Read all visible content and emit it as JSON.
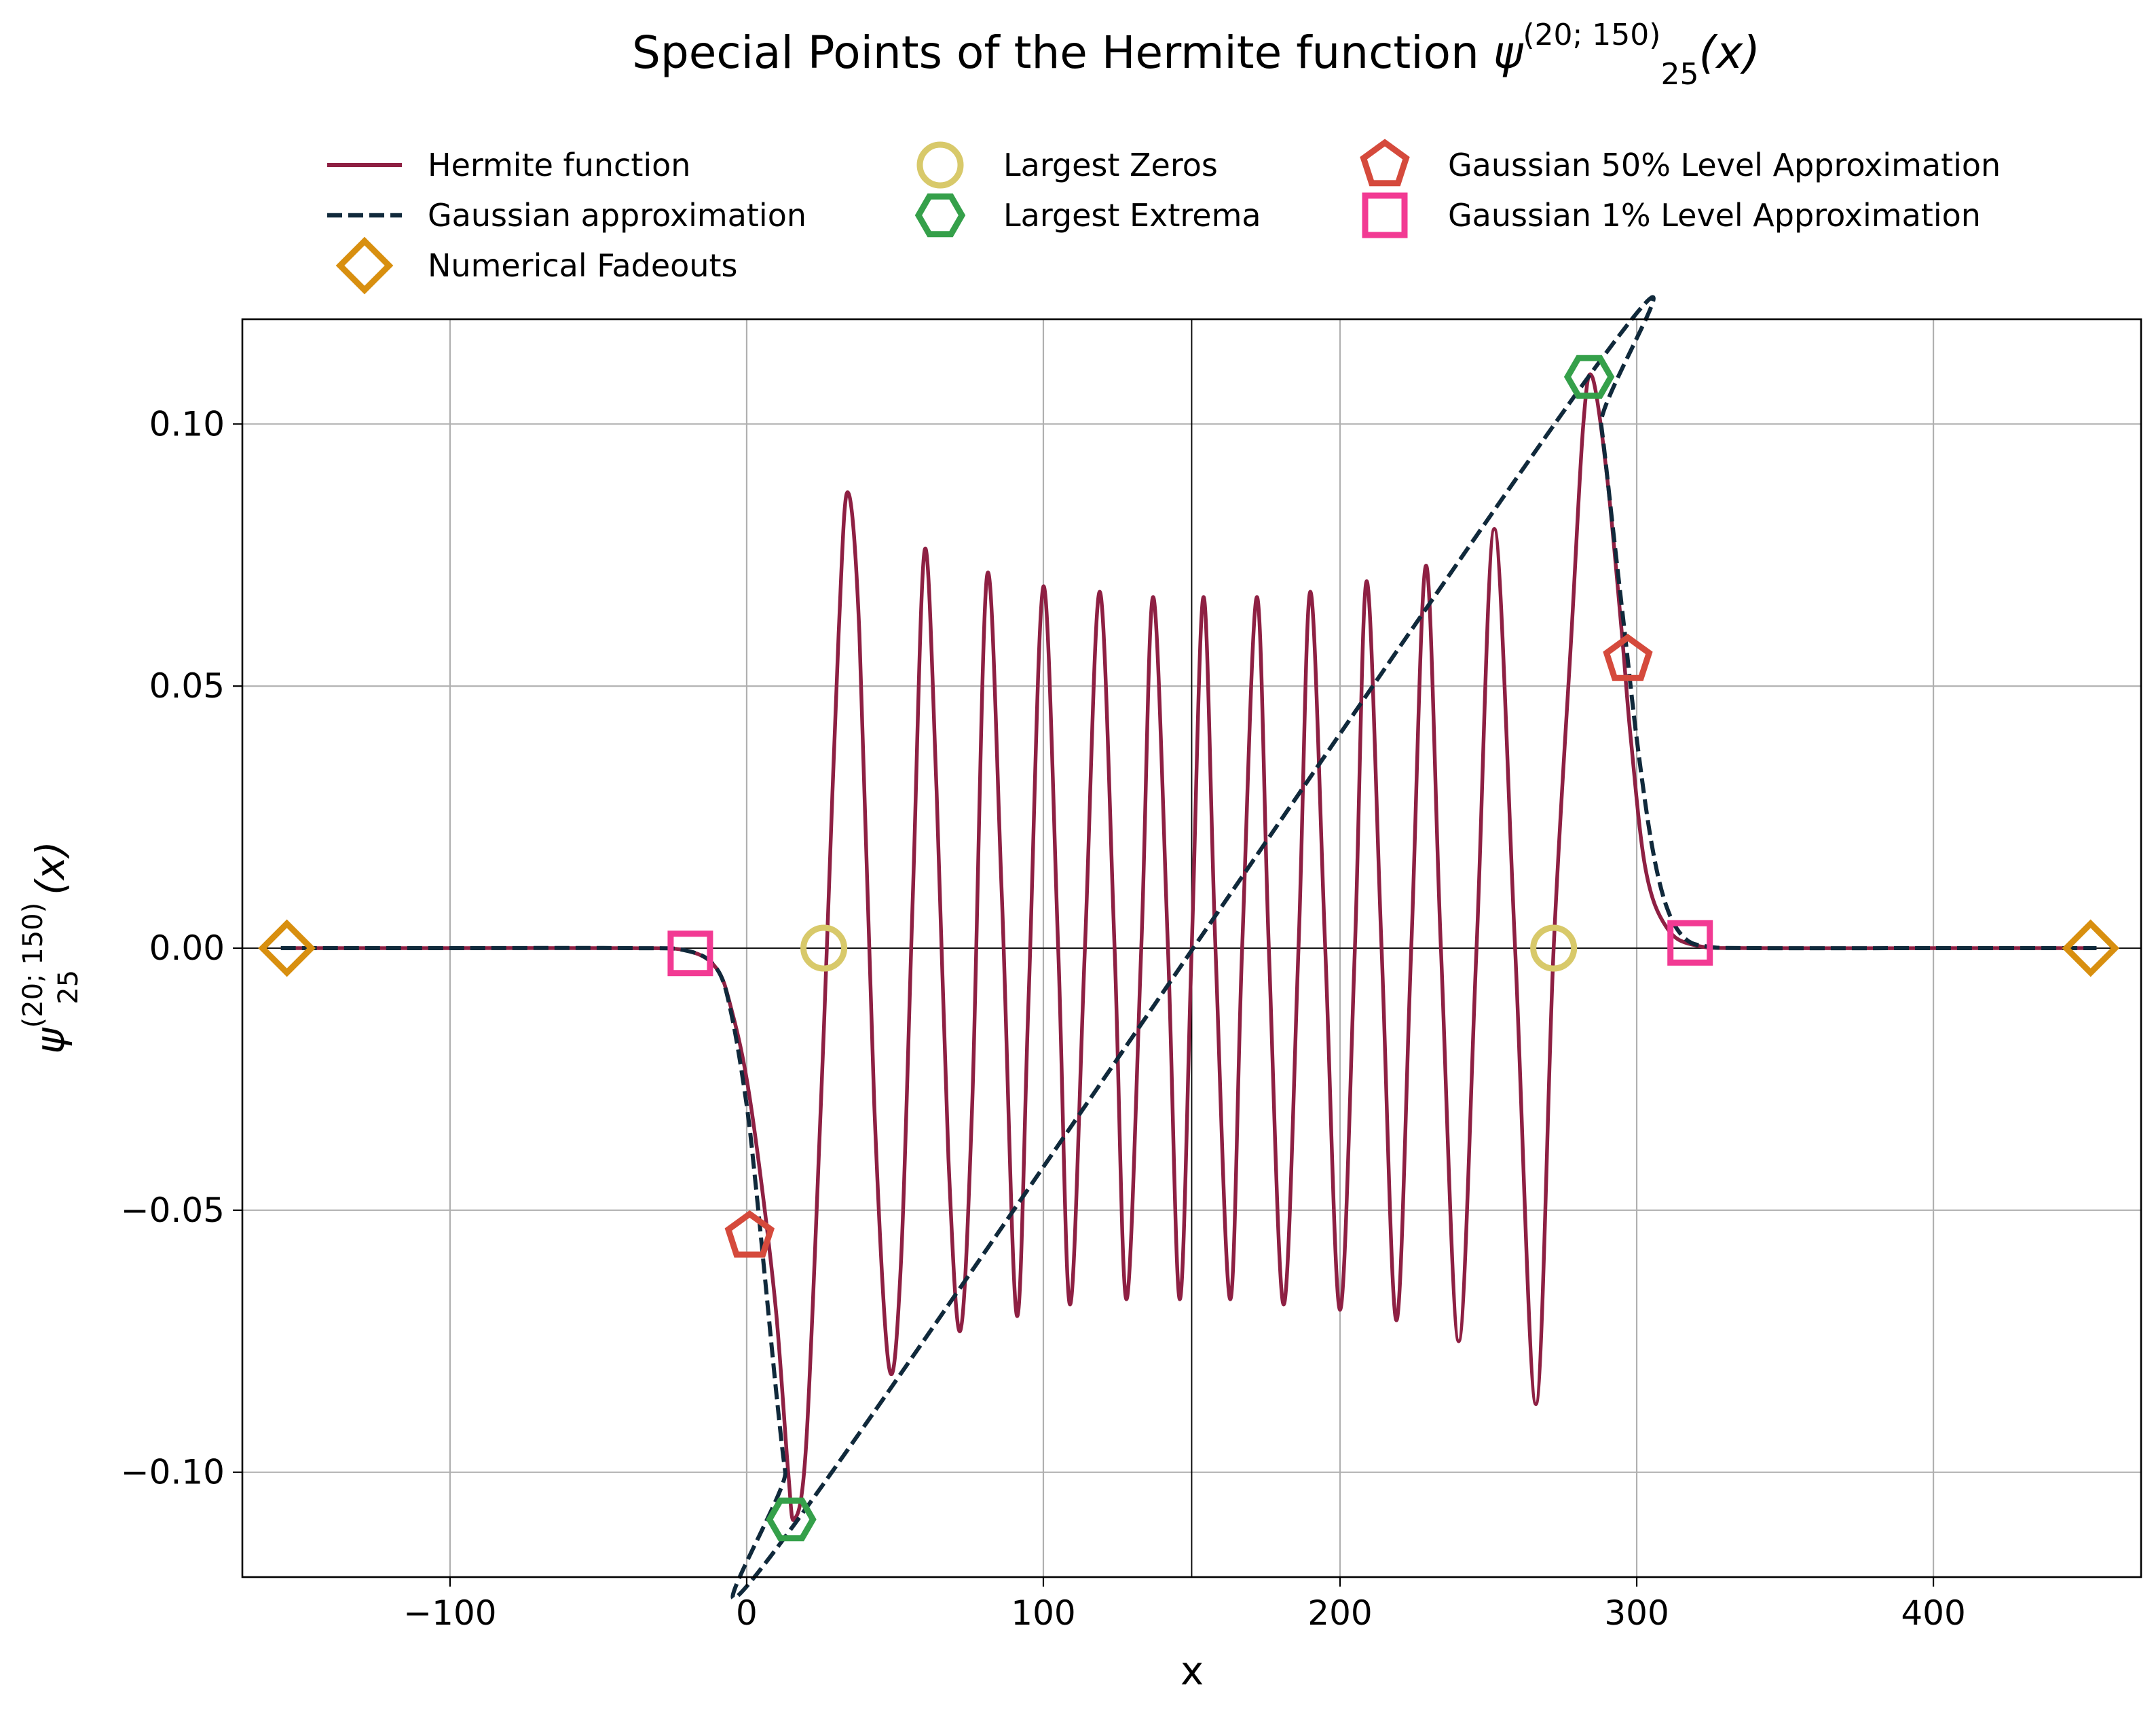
{
  "chart_data": {
    "type": "line",
    "title": {
      "prefix": "Special Points of the Hermite function ",
      "symbol": "ψ",
      "subscript": "25",
      "superscript": "(20; 150)",
      "suffix": "(x)"
    },
    "xlabel": "x",
    "ylabel": {
      "symbol": "ψ",
      "subscript": "25",
      "superscript": "(20; 150)",
      "suffix": "(x)"
    },
    "xlim": [
      -170,
      470
    ],
    "ylim": [
      -0.12,
      0.12
    ],
    "xticks": [
      -100,
      0,
      100,
      200,
      300,
      400
    ],
    "xtick_labels": [
      "−100",
      "0",
      "100",
      "200",
      "300",
      "400"
    ],
    "yticks": [
      -0.1,
      -0.05,
      0.0,
      0.05,
      0.1
    ],
    "ytick_labels": [
      "−0.10",
      "−0.05",
      "0.00",
      "0.05",
      "0.10"
    ],
    "grid": true,
    "reference_lines": {
      "x": 150,
      "y": 0
    },
    "legend": {
      "placement": "top-center",
      "columns": 3
    },
    "series": [
      {
        "name": "Hermite function",
        "style": "solid",
        "color": "#8e2043",
        "x": [
          -157,
          -100,
          -40,
          -20,
          -10,
          -5,
          0,
          5,
          10,
          14,
          16,
          20,
          25,
          27,
          31,
          34,
          38,
          43,
          48,
          52,
          56,
          60,
          64,
          68,
          72,
          76,
          81,
          86,
          91,
          95,
          100,
          105,
          109,
          114,
          119,
          124,
          128,
          133,
          137,
          142,
          146,
          150,
          154,
          158,
          163,
          167,
          172,
          176,
          181,
          186,
          190,
          195,
          200,
          205,
          209,
          214,
          219,
          224,
          229,
          234,
          240,
          246,
          252,
          259,
          266,
          272,
          278,
          282,
          285,
          290,
          295,
          298,
          303,
          310,
          320,
          340,
          400,
          455
        ],
        "y": [
          0,
          0,
          0,
          -0.0005,
          -0.004,
          -0.012,
          -0.025,
          -0.045,
          -0.07,
          -0.1,
          -0.109,
          -0.095,
          -0.03,
          0.0,
          0.06,
          0.087,
          0.06,
          -0.03,
          -0.08,
          -0.06,
          0.01,
          0.076,
          0.03,
          -0.04,
          -0.073,
          -0.03,
          0.071,
          0.01,
          -0.07,
          -0.01,
          0.069,
          0.0,
          -0.068,
          0.0,
          0.068,
          0.0,
          -0.067,
          0.0,
          0.067,
          0.0,
          -0.067,
          0.0,
          0.067,
          0.0,
          -0.067,
          0.0,
          0.067,
          0.0,
          -0.068,
          0.0,
          0.068,
          0.0,
          -0.069,
          0.0,
          0.07,
          0.0,
          -0.071,
          0.0,
          0.073,
          0.0,
          -0.075,
          0.0,
          0.08,
          0.0,
          -0.087,
          0.0,
          0.06,
          0.1,
          0.109,
          0.09,
          0.06,
          0.04,
          0.015,
          0.004,
          0.0005,
          0,
          0,
          0
        ]
      },
      {
        "name": "Gaussian approximation",
        "style": "dashed",
        "color": "#10293b",
        "x": [
          -157,
          -100,
          -40,
          -20,
          -10,
          -5,
          0,
          3,
          6,
          10,
          13,
          16,
          285,
          288,
          292,
          296,
          300,
          305,
          310,
          316,
          324,
          340,
          400,
          455
        ],
        "y": [
          0,
          0,
          0,
          -0.0005,
          -0.004,
          -0.013,
          -0.03,
          -0.045,
          -0.062,
          -0.085,
          -0.1,
          -0.11,
          0.11,
          0.1,
          0.08,
          0.06,
          0.04,
          0.02,
          0.008,
          0.002,
          0.0003,
          0,
          0,
          0
        ]
      }
    ],
    "markers": [
      {
        "name": "Numerical Fadeouts",
        "shape": "diamond",
        "color": "#d88f0f",
        "x": [
          -155,
          453
        ],
        "y": [
          0,
          0
        ]
      },
      {
        "name": "Largest Zeros",
        "shape": "circle",
        "color": "#d8c96a",
        "x": [
          26,
          272
        ],
        "y": [
          0,
          0
        ]
      },
      {
        "name": "Largest Extrema",
        "shape": "hexagon",
        "color": "#35a04a",
        "x": [
          15,
          284
        ],
        "y": [
          -0.109,
          0.109
        ]
      },
      {
        "name": "Gaussian 50% Level Approximation",
        "shape": "pentagon",
        "color": "#d54a3c",
        "x": [
          1,
          297
        ],
        "y": [
          -0.055,
          0.055
        ]
      },
      {
        "name": "Gaussian 1% Level Approximation",
        "shape": "square",
        "color": "#f23a93",
        "x": [
          -19,
          318
        ],
        "y": [
          -0.001,
          0.001
        ]
      }
    ]
  }
}
